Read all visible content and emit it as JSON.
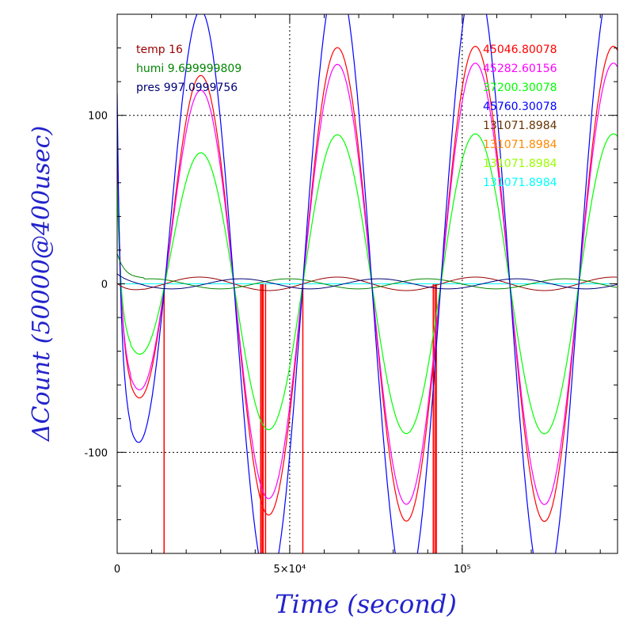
{
  "chart_data": {
    "type": "line",
    "xlabel": "Time (second)",
    "ylabel": "ΔCount (50000@400usec)",
    "xlim": [
      0,
      145000
    ],
    "ylim": [
      -160,
      160
    ],
    "x_ticks": [
      {
        "value": 0,
        "label": "0"
      },
      {
        "value": 50000,
        "label": "5×10⁴"
      },
      {
        "value": 100000,
        "label": "10⁵"
      }
    ],
    "y_ticks": [
      {
        "value": 100,
        "label": "100"
      },
      {
        "value": 0,
        "label": "0"
      },
      {
        "value": -100,
        "label": "-100"
      }
    ],
    "grid": true,
    "env_legend": [
      {
        "label": "temp 16",
        "color": "#990000"
      },
      {
        "label": "humi 9.699999809",
        "color": "#008800"
      },
      {
        "label": "pres 997.0999756",
        "color": "#000077"
      }
    ],
    "series": [
      {
        "name": "45046.80078",
        "color": "#ff0000",
        "amp": 141,
        "decay": 0.78,
        "period": 40000,
        "spikes": [
          13600,
          41600,
          42000,
          42300,
          43000,
          53800,
          91600,
          92100,
          92500
        ]
      },
      {
        "name": "45282.60156",
        "color": "#ff00ff",
        "amp": 131,
        "decay": 0.78,
        "period": 40000
      },
      {
        "name": "37200.30078",
        "color": "#00ff00",
        "amp": 89,
        "decay": 0.8,
        "period": 40000
      },
      {
        "name": "45760.30078",
        "color": "#0000ff",
        "amp": 183,
        "decay": 0.72,
        "period": 40000
      },
      {
        "name": "131071.8984",
        "color": "#663300",
        "value": 0
      },
      {
        "name": "131071.8984",
        "color": "#ff8800",
        "value": 0
      },
      {
        "name": "131071.8984",
        "color": "#99ff00",
        "value": 0
      },
      {
        "name": "131071.8984",
        "color": "#00ffff",
        "value": 0
      }
    ],
    "env_series": [
      {
        "color": "#990000",
        "amp": 4
      },
      {
        "color": "#008800",
        "amp": -3
      },
      {
        "color": "#000077",
        "amp": 3
      }
    ]
  }
}
